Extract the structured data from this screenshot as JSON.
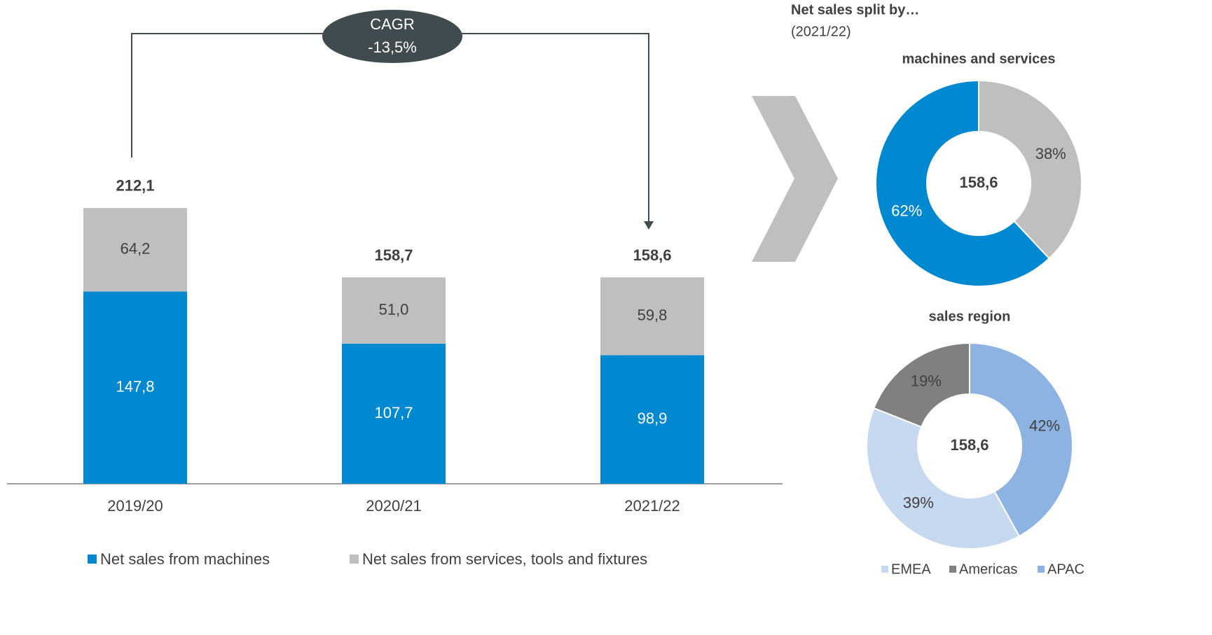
{
  "chart_data": [
    {
      "type": "bar",
      "stacked": true,
      "categories": [
        "2019/20",
        "2020/21",
        "2021/22"
      ],
      "series": [
        {
          "name": "Net sales from machines",
          "color": "#0088d1",
          "values": [
            147.8,
            107.7,
            98.9
          ],
          "value_labels": [
            "147,8",
            "107,7",
            "98,9"
          ]
        },
        {
          "name": "Net sales from services, tools and fixtures",
          "color": "#bfbfbf",
          "values": [
            64.2,
            51.0,
            59.8
          ],
          "value_labels": [
            "64,2",
            "51,0",
            "59,8"
          ]
        }
      ],
      "totals": [
        212.1,
        158.7,
        158.6
      ],
      "totals_labels": [
        "212,1",
        "158,7",
        "158,6"
      ],
      "annotation": {
        "title": "CAGR",
        "text": "-13,5%"
      }
    },
    {
      "type": "donut",
      "title": "Net sales split by…",
      "subtitle": "(2021/22)",
      "chart_title": "machines and services",
      "center_label": "158,6",
      "values": [
        62,
        38
      ],
      "value_labels": [
        "62%",
        "38%"
      ],
      "colors": [
        "#0088d1",
        "#bfbfbf"
      ]
    },
    {
      "type": "donut",
      "chart_title": "sales region",
      "center_label": "158,6",
      "categories": [
        "EMEA",
        "Americas",
        "APAC"
      ],
      "values": [
        39,
        19,
        42
      ],
      "value_labels": [
        "39%",
        "19%",
        "42%"
      ],
      "colors": [
        "#c6d9f1",
        "#808080",
        "#8db3e2"
      ]
    }
  ]
}
